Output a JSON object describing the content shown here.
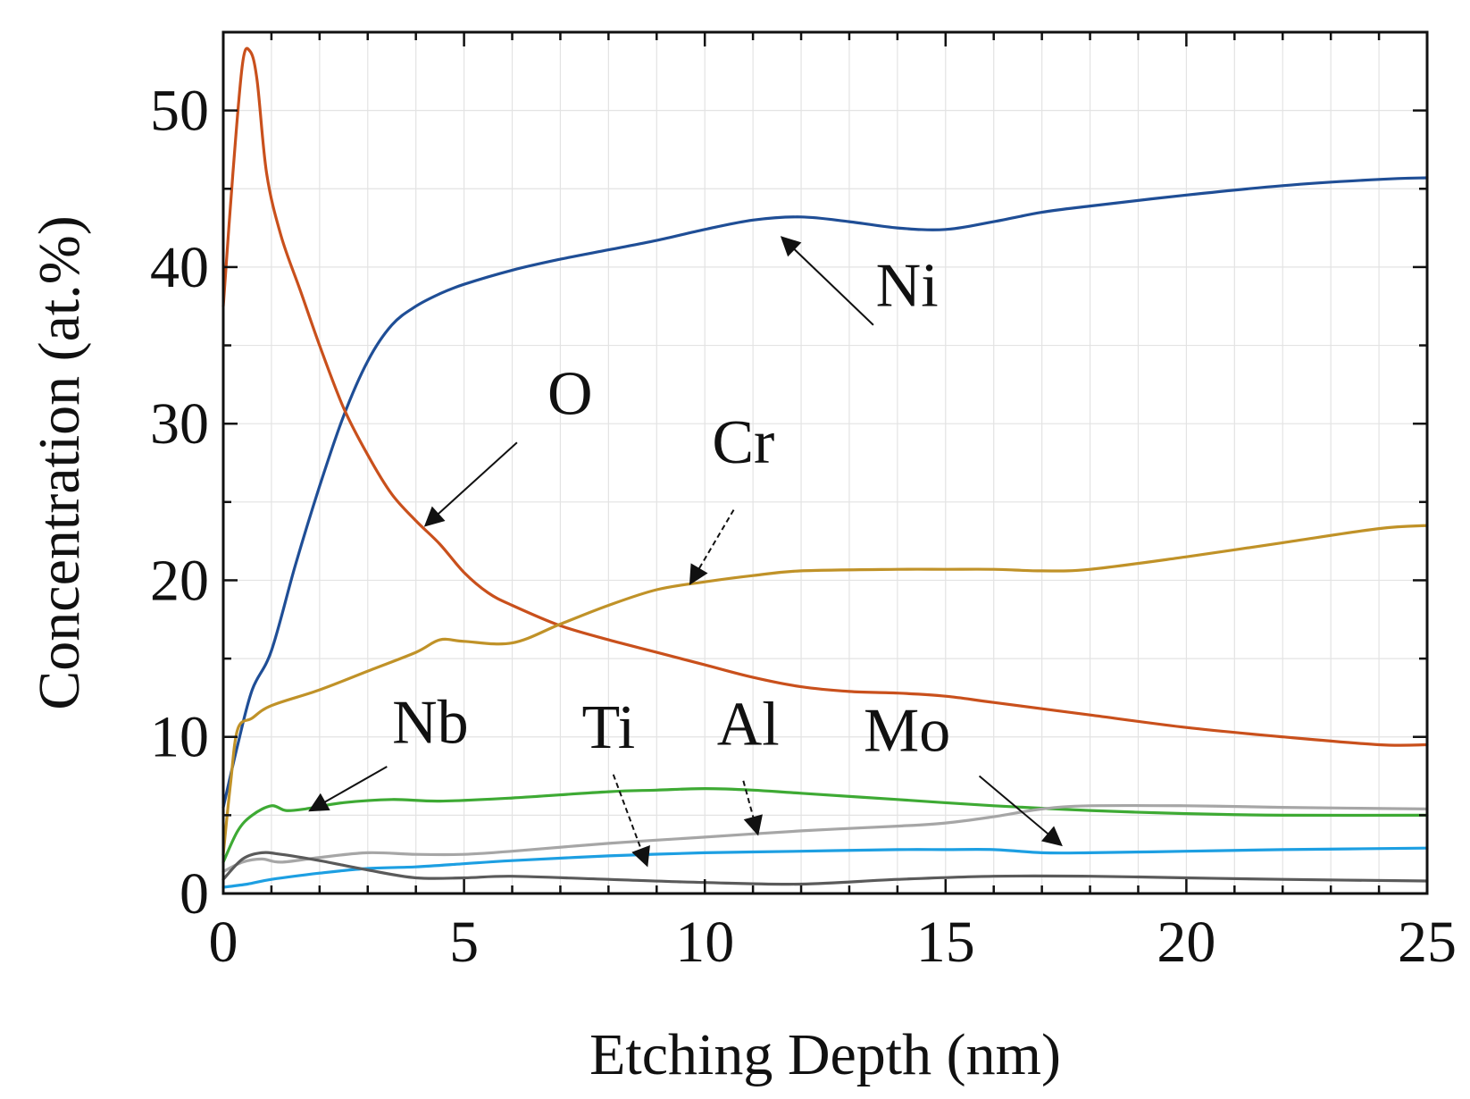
{
  "chart_data": {
    "type": "line",
    "title": "",
    "xlabel": "Etching Depth (nm)",
    "ylabel": "Concentration (at.%)",
    "xlim": [
      0,
      25
    ],
    "ylim": [
      0,
      55
    ],
    "xticks": [
      0,
      5,
      10,
      15,
      20,
      25
    ],
    "yticks": [
      0,
      10,
      20,
      30,
      40,
      50
    ],
    "x_minor_step": 1,
    "y_minor_step": 5,
    "grid": true,
    "legend": "none",
    "series": [
      {
        "name": "Ni",
        "color": "#1f4e96",
        "points": [
          [
            0,
            5.5
          ],
          [
            0.3,
            9.5
          ],
          [
            0.6,
            13
          ],
          [
            1,
            15.5
          ],
          [
            1.5,
            21
          ],
          [
            2,
            26
          ],
          [
            2.5,
            30.5
          ],
          [
            3,
            34
          ],
          [
            3.5,
            36.3
          ],
          [
            4,
            37.5
          ],
          [
            4.5,
            38.3
          ],
          [
            5,
            38.9
          ],
          [
            6,
            39.8
          ],
          [
            7,
            40.5
          ],
          [
            8,
            41.1
          ],
          [
            9,
            41.7
          ],
          [
            10,
            42.4
          ],
          [
            11,
            43
          ],
          [
            12,
            43.2
          ],
          [
            13,
            42.9
          ],
          [
            14,
            42.5
          ],
          [
            15,
            42.4
          ],
          [
            16,
            42.9
          ],
          [
            17,
            43.5
          ],
          [
            18,
            43.9
          ],
          [
            20,
            44.6
          ],
          [
            22,
            45.2
          ],
          [
            24,
            45.6
          ],
          [
            25,
            45.7
          ]
        ]
      },
      {
        "name": "O",
        "color": "#c9501c",
        "points": [
          [
            0,
            37.5
          ],
          [
            0.2,
            46
          ],
          [
            0.4,
            53
          ],
          [
            0.55,
            53.8
          ],
          [
            0.7,
            52
          ],
          [
            0.9,
            46
          ],
          [
            1.2,
            42
          ],
          [
            1.6,
            38.5
          ],
          [
            2,
            35
          ],
          [
            2.5,
            31
          ],
          [
            3,
            28
          ],
          [
            3.5,
            25.5
          ],
          [
            4,
            23.8
          ],
          [
            4.5,
            22.3
          ],
          [
            5,
            20.5
          ],
          [
            5.5,
            19.2
          ],
          [
            6,
            18.4
          ],
          [
            7,
            17.1
          ],
          [
            8,
            16.2
          ],
          [
            9,
            15.4
          ],
          [
            10,
            14.6
          ],
          [
            11,
            13.8
          ],
          [
            12,
            13.2
          ],
          [
            13,
            12.9
          ],
          [
            14,
            12.8
          ],
          [
            15,
            12.6
          ],
          [
            16,
            12.2
          ],
          [
            18,
            11.4
          ],
          [
            20,
            10.6
          ],
          [
            22,
            10
          ],
          [
            24,
            9.5
          ],
          [
            25,
            9.5
          ]
        ]
      },
      {
        "name": "Cr",
        "color": "#c09228",
        "points": [
          [
            0,
            2.5
          ],
          [
            0.15,
            7
          ],
          [
            0.3,
            10.5
          ],
          [
            0.6,
            11.2
          ],
          [
            1,
            12
          ],
          [
            2,
            13
          ],
          [
            3,
            14.2
          ],
          [
            4,
            15.4
          ],
          [
            4.5,
            16.2
          ],
          [
            5,
            16.1
          ],
          [
            6,
            16
          ],
          [
            7,
            17.2
          ],
          [
            8,
            18.4
          ],
          [
            9,
            19.4
          ],
          [
            10,
            19.9
          ],
          [
            11,
            20.3
          ],
          [
            12,
            20.6
          ],
          [
            14,
            20.7
          ],
          [
            15,
            20.7
          ],
          [
            16,
            20.7
          ],
          [
            17,
            20.6
          ],
          [
            18,
            20.7
          ],
          [
            20,
            21.5
          ],
          [
            22,
            22.4
          ],
          [
            24,
            23.3
          ],
          [
            25,
            23.5
          ]
        ]
      },
      {
        "name": "Nb",
        "color": "#3eaa34",
        "points": [
          [
            0,
            2
          ],
          [
            0.3,
            4
          ],
          [
            0.6,
            5
          ],
          [
            1,
            5.6
          ],
          [
            1.3,
            5.3
          ],
          [
            1.7,
            5.4
          ],
          [
            2.5,
            5.8
          ],
          [
            3.5,
            6
          ],
          [
            4.5,
            5.9
          ],
          [
            6,
            6.1
          ],
          [
            8,
            6.5
          ],
          [
            9,
            6.6
          ],
          [
            10,
            6.7
          ],
          [
            11,
            6.6
          ],
          [
            12,
            6.4
          ],
          [
            14,
            6
          ],
          [
            16,
            5.6
          ],
          [
            18,
            5.3
          ],
          [
            20,
            5.1
          ],
          [
            22,
            5
          ],
          [
            25,
            5
          ]
        ]
      },
      {
        "name": "Al",
        "color": "#a6a6a6",
        "points": [
          [
            0,
            1.4
          ],
          [
            0.4,
            2
          ],
          [
            0.8,
            2.2
          ],
          [
            1.2,
            2
          ],
          [
            2,
            2.3
          ],
          [
            3,
            2.6
          ],
          [
            4,
            2.5
          ],
          [
            5,
            2.5
          ],
          [
            6,
            2.7
          ],
          [
            8,
            3.2
          ],
          [
            10,
            3.6
          ],
          [
            12,
            4
          ],
          [
            14,
            4.3
          ],
          [
            15,
            4.5
          ],
          [
            16,
            4.9
          ],
          [
            17,
            5.4
          ],
          [
            18,
            5.6
          ],
          [
            20,
            5.6
          ],
          [
            22,
            5.5
          ],
          [
            25,
            5.4
          ]
        ]
      },
      {
        "name": "Mo",
        "color": "#1d9fe2",
        "points": [
          [
            0,
            0.4
          ],
          [
            0.5,
            0.6
          ],
          [
            1,
            0.9
          ],
          [
            2,
            1.3
          ],
          [
            3,
            1.6
          ],
          [
            4,
            1.7
          ],
          [
            5,
            1.9
          ],
          [
            6,
            2.1
          ],
          [
            8,
            2.4
          ],
          [
            10,
            2.6
          ],
          [
            12,
            2.7
          ],
          [
            14,
            2.8
          ],
          [
            15,
            2.8
          ],
          [
            16,
            2.8
          ],
          [
            17,
            2.6
          ],
          [
            18,
            2.6
          ],
          [
            20,
            2.7
          ],
          [
            22,
            2.8
          ],
          [
            25,
            2.9
          ]
        ]
      },
      {
        "name": "Ti",
        "color": "#5a5a5a",
        "points": [
          [
            0,
            0.9
          ],
          [
            0.4,
            2.2
          ],
          [
            0.8,
            2.6
          ],
          [
            1.2,
            2.5
          ],
          [
            2,
            2.1
          ],
          [
            3,
            1.5
          ],
          [
            4,
            1
          ],
          [
            5,
            1
          ],
          [
            6,
            1.1
          ],
          [
            8,
            0.9
          ],
          [
            10,
            0.7
          ],
          [
            12,
            0.6
          ],
          [
            14,
            0.9
          ],
          [
            16,
            1.1
          ],
          [
            18,
            1.1
          ],
          [
            20,
            1
          ],
          [
            22,
            0.9
          ],
          [
            25,
            0.8
          ]
        ]
      }
    ],
    "annotations": [
      {
        "text": "Ni",
        "label_at": [
          14.2,
          37.5
        ],
        "arrow_from": [
          13.5,
          36.3
        ],
        "arrow_to": [
          11.6,
          41.9
        ],
        "style": "solid"
      },
      {
        "text": "O",
        "label_at": [
          7.2,
          30.6
        ],
        "arrow_from": [
          6.1,
          28.8
        ],
        "arrow_to": [
          4.2,
          23.5
        ],
        "style": "solid"
      },
      {
        "text": "Cr",
        "label_at": [
          10.8,
          27.5
        ],
        "arrow_from": [
          10.6,
          24.5
        ],
        "arrow_to": [
          9.7,
          19.8
        ],
        "style": "dashed"
      },
      {
        "text": "Nb",
        "label_at": [
          4.3,
          9.6
        ],
        "arrow_from": [
          3.4,
          8.1
        ],
        "arrow_to": [
          1.8,
          5.3
        ],
        "style": "solid"
      },
      {
        "text": "Ti",
        "label_at": [
          8.0,
          9.3
        ],
        "arrow_from": [
          8.1,
          7.6
        ],
        "arrow_to": [
          8.8,
          1.8
        ],
        "style": "dashed"
      },
      {
        "text": "Al",
        "label_at": [
          10.9,
          9.5
        ],
        "arrow_from": [
          10.8,
          7.2
        ],
        "arrow_to": [
          11.1,
          3.8
        ],
        "style": "dashed"
      },
      {
        "text": "Mo",
        "label_at": [
          14.2,
          9.1
        ],
        "arrow_from": [
          15.7,
          7.5
        ],
        "arrow_to": [
          17.4,
          3.1
        ],
        "style": "solid"
      }
    ]
  }
}
